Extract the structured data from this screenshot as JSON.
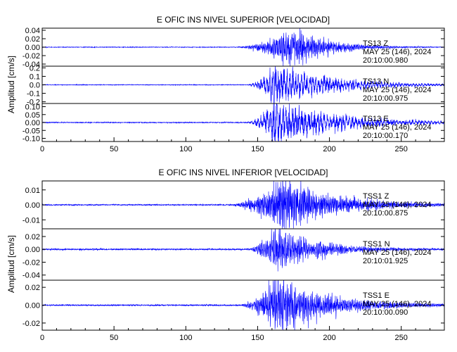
{
  "chart_data": [
    {
      "type": "line",
      "title": "E OFIC INS NIVEL SUPERIOR [VELOCIDAD]",
      "ylabel": "Amplitud [cm/s]",
      "xlim": [
        0,
        280
      ],
      "x_ticks": [
        0,
        50,
        100,
        150,
        200,
        250
      ],
      "line_color": "#0000ff",
      "panels": [
        {
          "station": "TS13   Z",
          "date": "MAY 25 (146), 2024",
          "time": "20:10:00.980",
          "ylim": [
            -0.045,
            0.045
          ],
          "y_ticks": [
            -0.04,
            -0.02,
            0.0,
            0.02,
            0.04
          ],
          "y_tick_labels": [
            "-0.04",
            "-0.02",
            "0.00",
            "0.02",
            "0.04"
          ],
          "noise": 0.0004,
          "wave": [
            {
              "t0": 130,
              "t1": 175,
              "t2": 240,
              "amp": 0.03,
              "period": 0.8
            },
            {
              "t0": 155,
              "t1": 166,
              "t2": 200,
              "amp": 0.014,
              "period": 1.1
            }
          ]
        },
        {
          "station": "TS13   N",
          "date": "MAY 25 (146), 2024",
          "time": "20:10:00.975",
          "ylim": [
            -0.22,
            0.22
          ],
          "y_ticks": [
            -0.2,
            -0.1,
            0.0,
            0.1,
            0.2
          ],
          "y_tick_labels": [
            "-0.2",
            "-0.1",
            "0.0",
            "0.1",
            "0.2"
          ],
          "noise": 0.002,
          "wave": [
            {
              "t0": 140,
              "t1": 162,
              "t2": 270,
              "amp": 0.15,
              "period": 2.0
            },
            {
              "t0": 152,
              "t1": 160,
              "t2": 220,
              "amp": 0.05,
              "period": 1.1
            }
          ]
        },
        {
          "station": "TS13   E",
          "date": "MAY 25 (146), 2024",
          "time": "20:10:00.170",
          "ylim": [
            -0.12,
            0.12
          ],
          "y_ticks": [
            -0.1,
            -0.05,
            0.0,
            0.05,
            0.1
          ],
          "y_tick_labels": [
            "-0.10",
            "-0.05",
            "0.00",
            "0.05",
            "0.10"
          ],
          "noise": 0.0015,
          "wave": [
            {
              "t0": 140,
              "t1": 162,
              "t2": 280,
              "amp": 0.09,
              "period": 2.2
            },
            {
              "t0": 152,
              "t1": 160,
              "t2": 225,
              "amp": 0.03,
              "period": 1.2
            }
          ]
        }
      ]
    },
    {
      "type": "line",
      "title": "E OFIC INS NIVEL INFERIOR [VELOCIDAD]",
      "ylabel": "Amplitud [cm/s]",
      "xlim": [
        0,
        280
      ],
      "x_ticks": [
        0,
        50,
        100,
        150,
        200,
        250
      ],
      "line_color": "#0000ff",
      "panels": [
        {
          "station": "TSS1   Z",
          "date": "MAY 25 (146), 2024",
          "time": "20:10:00.875",
          "ylim": [
            -0.016,
            0.016
          ],
          "y_ticks": [
            -0.01,
            0.0,
            0.01
          ],
          "y_tick_labels": [
            "-0.01",
            "0.00",
            "0.01"
          ],
          "noise": 0.0002,
          "wave": [
            {
              "t0": 125,
              "t1": 168,
              "t2": 270,
              "amp": 0.0115,
              "period": 0.7
            },
            {
              "t0": 150,
              "t1": 162,
              "t2": 200,
              "amp": 0.004,
              "period": 1.0
            }
          ]
        },
        {
          "station": "TSS1   N",
          "date": "MAY 25 (146), 2024",
          "time": "20:10:01.925",
          "ylim": [
            -0.048,
            0.032
          ],
          "y_ticks": [
            -0.04,
            -0.02,
            0.0,
            0.02
          ],
          "y_tick_labels": [
            "-0.04",
            "-0.02",
            "0.00",
            "0.02"
          ],
          "noise": 0.0006,
          "wave": [
            {
              "t0": 140,
              "t1": 162,
              "t2": 245,
              "amp": 0.022,
              "period": 0.9
            },
            {
              "t0": 157,
              "t1": 160,
              "t2": 175,
              "amp": 0.02,
              "period": 1.2
            }
          ]
        },
        {
          "station": "TSS1   E",
          "date": "MAY 25 (146), 2024",
          "time": "20:10:00.090",
          "ylim": [
            -0.028,
            0.028
          ],
          "y_ticks": [
            -0.02,
            0.0,
            0.02
          ],
          "y_tick_labels": [
            "-0.02",
            "0.00",
            "0.02"
          ],
          "noise": 0.0004,
          "wave": [
            {
              "t0": 135,
              "t1": 162,
              "t2": 260,
              "amp": 0.021,
              "period": 0.8
            },
            {
              "t0": 155,
              "t1": 160,
              "t2": 185,
              "amp": 0.008,
              "period": 1.1
            }
          ]
        }
      ]
    }
  ]
}
